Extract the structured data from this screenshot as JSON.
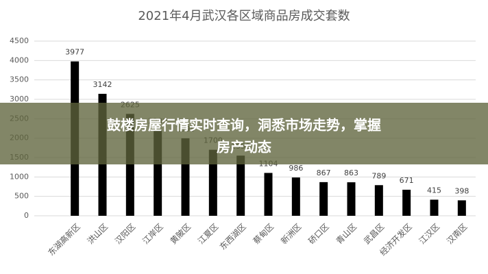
{
  "chart_data": {
    "type": "bar",
    "title": "2021年4月武汉各区域商品房成交套数",
    "categories": [
      "东湖高新区",
      "洪山区",
      "汉阳区",
      "江岸区",
      "黄陂区",
      "江夏区",
      "东西湖区",
      "蔡甸区",
      "新洲区",
      "硚口区",
      "青山区",
      "武昌区",
      "经济开发区",
      "江汉区",
      "汉南区"
    ],
    "values": [
      3977,
      3142,
      2625,
      2200,
      1995,
      1700,
      1550,
      1104,
      986,
      867,
      863,
      789,
      671,
      415,
      398
    ],
    "color": "#000000",
    "ylim": [
      0,
      4500
    ],
    "yticks": [
      0,
      500,
      1000,
      1500,
      2000,
      2500,
      3000,
      3500,
      4000,
      4500
    ],
    "grid": true
  },
  "banner": {
    "lines": [
      "鼓楼房屋行情实时查询，洞悉市场走势，掌握",
      "房产动态"
    ]
  }
}
